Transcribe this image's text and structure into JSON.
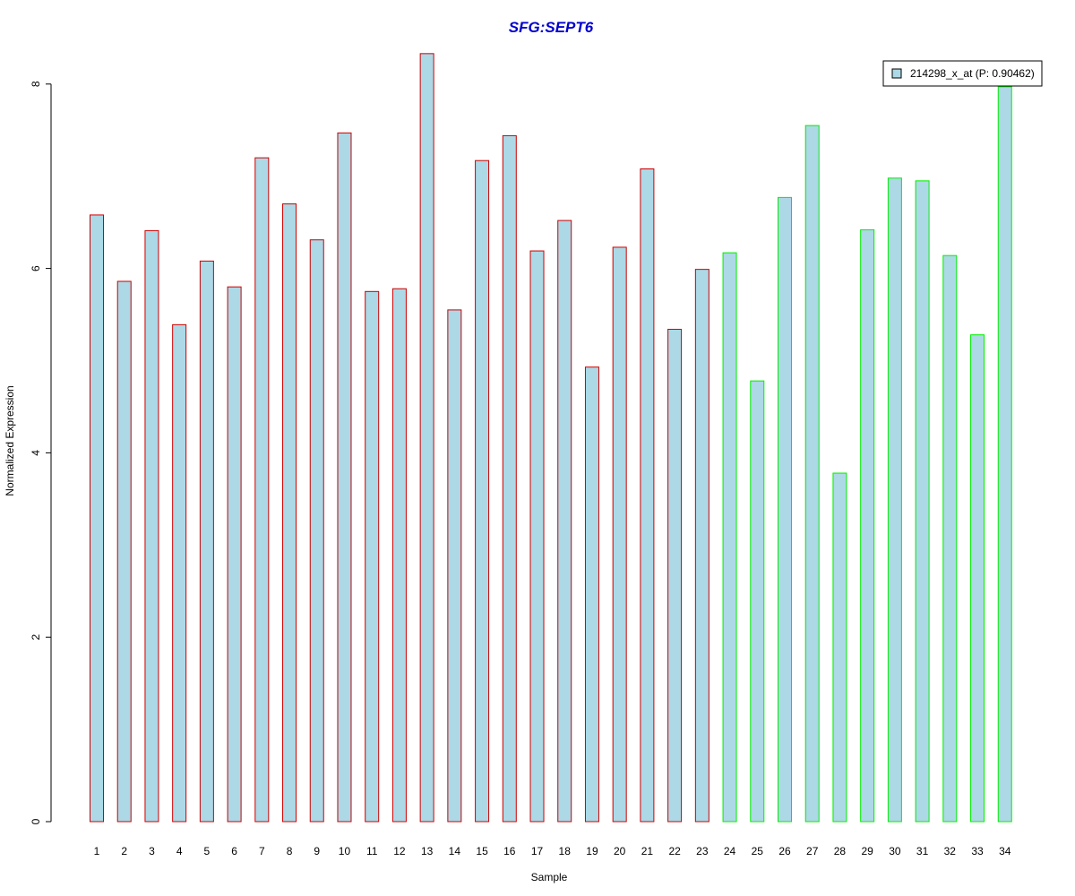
{
  "chart_data": {
    "type": "bar",
    "title": "SFG:SEPT6",
    "xlabel": "Sample",
    "ylabel": "Normalized Expression",
    "categories": [
      "1",
      "2",
      "3",
      "4",
      "5",
      "6",
      "7",
      "8",
      "9",
      "10",
      "11",
      "12",
      "13",
      "14",
      "15",
      "16",
      "17",
      "18",
      "19",
      "20",
      "21",
      "22",
      "23",
      "24",
      "25",
      "26",
      "27",
      "28",
      "29",
      "30",
      "31",
      "32",
      "33",
      "34"
    ],
    "series": [
      {
        "name": "214298_x_at (P: 0.90462)",
        "values": [
          6.58,
          5.86,
          6.41,
          5.39,
          6.08,
          5.8,
          7.2,
          6.7,
          6.31,
          7.47,
          5.75,
          5.78,
          8.33,
          5.55,
          7.17,
          7.44,
          6.19,
          6.52,
          4.93,
          6.23,
          7.08,
          5.34,
          5.99,
          6.17,
          4.78,
          6.77,
          7.55,
          3.78,
          6.42,
          6.98,
          6.95,
          6.14,
          5.28,
          7.97
        ]
      }
    ],
    "groups": [
      {
        "range": [
          1,
          23
        ],
        "border_color": "#cc0000"
      },
      {
        "range": [
          24,
          34
        ],
        "border_color": "#00ee00"
      }
    ],
    "bar_fill": "#add8e6",
    "title_color": "#0000cc",
    "yticks": [
      0,
      2,
      4,
      6,
      8
    ],
    "ylim": [
      0,
      8.33
    ],
    "legend_position": "top-right",
    "grid": false
  }
}
